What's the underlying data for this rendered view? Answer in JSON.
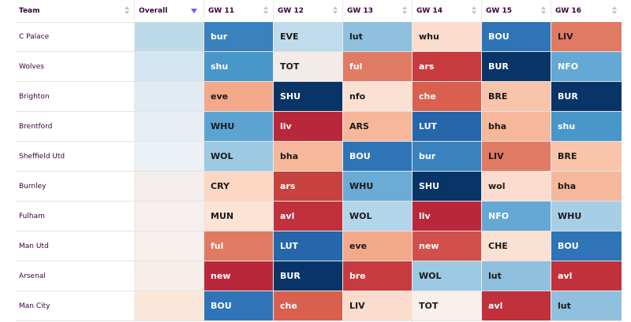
{
  "headers": {
    "team": "Team",
    "overall": "Overall",
    "gws": [
      "GW 11",
      "GW 12",
      "GW 13",
      "GW 14",
      "GW 15",
      "GW 16"
    ]
  },
  "colors": {
    "header_text": "#37003c",
    "sort_active": "#6b5bff"
  },
  "rows": [
    {
      "team": "C Palace",
      "overall": "#bcdaea",
      "fixtures": [
        {
          "t": "bur",
          "bg": "#3a82be",
          "fg": "#ffffff"
        },
        {
          "t": "EVE",
          "bg": "#bfdbec",
          "fg": "#1a1a1a"
        },
        {
          "t": "lut",
          "bg": "#8fc0dd",
          "fg": "#1a1a1a"
        },
        {
          "t": "whu",
          "bg": "#fbdccd",
          "fg": "#1a1a1a"
        },
        {
          "t": "BOU",
          "bg": "#2e74b6",
          "fg": "#ffffff"
        },
        {
          "t": "LIV",
          "bg": "#e17a63",
          "fg": "#1a1a1a"
        }
      ]
    },
    {
      "team": "Wolves",
      "overall": "#d3e5f0",
      "fixtures": [
        {
          "t": "shu",
          "bg": "#4996c9",
          "fg": "#ffffff"
        },
        {
          "t": "TOT",
          "bg": "#f3ebe7",
          "fg": "#1a1a1a"
        },
        {
          "t": "ful",
          "bg": "#e17a63",
          "fg": "#ffffff"
        },
        {
          "t": "ars",
          "bg": "#c73a3d",
          "fg": "#ffffff"
        },
        {
          "t": "BUR",
          "bg": "#093467",
          "fg": "#ffffff"
        },
        {
          "t": "NFO",
          "bg": "#64a8d5",
          "fg": "#ffffff"
        }
      ]
    },
    {
      "team": "Brighton",
      "overall": "#e1ecf2",
      "fixtures": [
        {
          "t": "eve",
          "bg": "#f4a88a",
          "fg": "#1a1a1a"
        },
        {
          "t": "SHU",
          "bg": "#093467",
          "fg": "#ffffff"
        },
        {
          "t": "nfo",
          "bg": "#fbe1d3",
          "fg": "#1a1a1a"
        },
        {
          "t": "che",
          "bg": "#d9604f",
          "fg": "#ffffff"
        },
        {
          "t": "BRE",
          "bg": "#f8c4aa",
          "fg": "#1a1a1a"
        },
        {
          "t": "BUR",
          "bg": "#093467",
          "fg": "#ffffff"
        }
      ]
    },
    {
      "team": "Brentford",
      "overall": "#e6eef2",
      "fixtures": [
        {
          "t": "WHU",
          "bg": "#5ba4d2",
          "fg": "#1a1a1a"
        },
        {
          "t": "liv",
          "bg": "#b9283a",
          "fg": "#ffffff"
        },
        {
          "t": "ARS",
          "bg": "#f6b79b",
          "fg": "#1a1a1a"
        },
        {
          "t": "LUT",
          "bg": "#2666ab",
          "fg": "#ffffff"
        },
        {
          "t": "bha",
          "bg": "#f6b79b",
          "fg": "#1a1a1a"
        },
        {
          "t": "shu",
          "bg": "#4996c9",
          "fg": "#ffffff"
        }
      ]
    },
    {
      "team": "Sheffield Utd",
      "overall": "#ebf1f4",
      "fixtures": [
        {
          "t": "WOL",
          "bg": "#9ccae3",
          "fg": "#1a1a1a"
        },
        {
          "t": "bha",
          "bg": "#f6b79b",
          "fg": "#1a1a1a"
        },
        {
          "t": "BOU",
          "bg": "#2e74b6",
          "fg": "#ffffff"
        },
        {
          "t": "bur",
          "bg": "#3a82be",
          "fg": "#ffffff"
        },
        {
          "t": "LIV",
          "bg": "#e17a63",
          "fg": "#1a1a1a"
        },
        {
          "t": "BRE",
          "bg": "#f8c4aa",
          "fg": "#1a1a1a"
        }
      ]
    },
    {
      "team": "Burnley",
      "overall": "#f4eeec",
      "fixtures": [
        {
          "t": "CRY",
          "bg": "#fbd7c4",
          "fg": "#1a1a1a"
        },
        {
          "t": "ars",
          "bg": "#c7413f",
          "fg": "#ffffff"
        },
        {
          "t": "WHU",
          "bg": "#6aacd6",
          "fg": "#1a1a1a"
        },
        {
          "t": "SHU",
          "bg": "#093467",
          "fg": "#ffffff"
        },
        {
          "t": "wol",
          "bg": "#fbdccd",
          "fg": "#1a1a1a"
        },
        {
          "t": "bha",
          "bg": "#f6b79b",
          "fg": "#1a1a1a"
        }
      ]
    },
    {
      "team": "Fulham",
      "overall": "#f5efed",
      "fixtures": [
        {
          "t": "MUN",
          "bg": "#fbe3d6",
          "fg": "#1a1a1a"
        },
        {
          "t": "avl",
          "bg": "#c0313c",
          "fg": "#ffffff"
        },
        {
          "t": "WOL",
          "bg": "#b3d5e9",
          "fg": "#1a1a1a"
        },
        {
          "t": "liv",
          "bg": "#b9283a",
          "fg": "#ffffff"
        },
        {
          "t": "NFO",
          "bg": "#64a8d5",
          "fg": "#ffffff"
        },
        {
          "t": "WHU",
          "bg": "#a6cfe6",
          "fg": "#1a1a1a"
        }
      ]
    },
    {
      "team": "Man Utd",
      "overall": "#f6efec",
      "fixtures": [
        {
          "t": "ful",
          "bg": "#e17a63",
          "fg": "#ffffff"
        },
        {
          "t": "LUT",
          "bg": "#2666ab",
          "fg": "#ffffff"
        },
        {
          "t": "eve",
          "bg": "#f4a88a",
          "fg": "#1a1a1a"
        },
        {
          "t": "new",
          "bg": "#d2504b",
          "fg": "#ffffff"
        },
        {
          "t": "CHE",
          "bg": "#fbe1d3",
          "fg": "#1a1a1a"
        },
        {
          "t": "BOU",
          "bg": "#2e74b6",
          "fg": "#ffffff"
        }
      ]
    },
    {
      "team": "Arsenal",
      "overall": "#f7ede9",
      "fixtures": [
        {
          "t": "new",
          "bg": "#b9283a",
          "fg": "#ffffff"
        },
        {
          "t": "BUR",
          "bg": "#093467",
          "fg": "#ffffff"
        },
        {
          "t": "bre",
          "bg": "#c73a3d",
          "fg": "#ffffff"
        },
        {
          "t": "WOL",
          "bg": "#9ccae3",
          "fg": "#1a1a1a"
        },
        {
          "t": "lut",
          "bg": "#8fc0dd",
          "fg": "#1a1a1a"
        },
        {
          "t": "avl",
          "bg": "#c0313c",
          "fg": "#ffffff"
        }
      ]
    },
    {
      "team": "Man City",
      "overall": "#fbe6da",
      "fixtures": [
        {
          "t": "BOU",
          "bg": "#2e74b6",
          "fg": "#ffffff"
        },
        {
          "t": "che",
          "bg": "#d9604f",
          "fg": "#ffffff"
        },
        {
          "t": "LIV",
          "bg": "#fbdccd",
          "fg": "#1a1a1a"
        },
        {
          "t": "TOT",
          "bg": "#faf0eb",
          "fg": "#1a1a1a"
        },
        {
          "t": "avl",
          "bg": "#c0313c",
          "fg": "#ffffff"
        },
        {
          "t": "lut",
          "bg": "#8fc0dd",
          "fg": "#1a1a1a"
        }
      ]
    }
  ]
}
